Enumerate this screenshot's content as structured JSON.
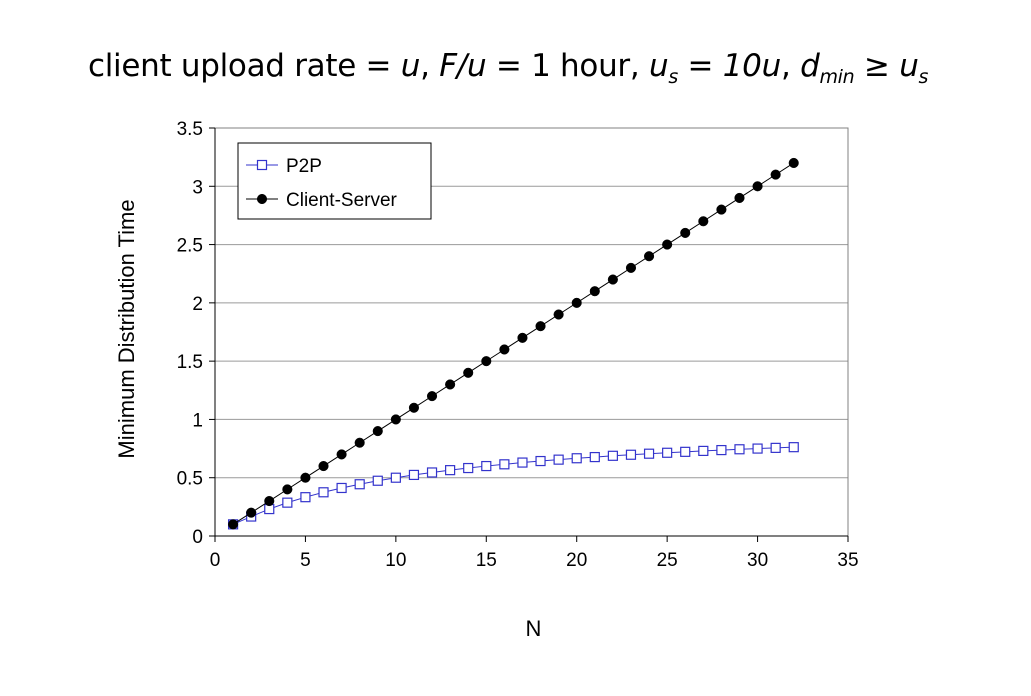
{
  "title": {
    "part1": "client upload rate = ",
    "u1": "u",
    "part2": ",  ",
    "fu": "F/u",
    "part3": " = 1 hour,  ",
    "us_base": "u",
    "us_sub": "s",
    "part4": " = ",
    "tenu": "10u",
    "part5": ",  ",
    "d_base": "d",
    "d_sub": "min",
    "part6": " ≥ ",
    "us2_base": "u",
    "us2_sub": "s"
  },
  "chart_data": {
    "type": "line",
    "xlabel": "N",
    "ylabel": "Minimum Distribution Time",
    "xlim": [
      0,
      35
    ],
    "ylim": [
      0,
      3.5
    ],
    "xticks": [
      "0",
      "5",
      "10",
      "15",
      "20",
      "25",
      "30",
      "35"
    ],
    "yticks": [
      "0",
      "0.5",
      "1",
      "1.5",
      "2",
      "2.5",
      "3",
      "3.5"
    ],
    "grid": true,
    "legend_position": "top-left",
    "x": [
      1,
      2,
      3,
      4,
      5,
      6,
      7,
      8,
      9,
      10,
      11,
      12,
      13,
      14,
      15,
      16,
      17,
      18,
      19,
      20,
      21,
      22,
      23,
      24,
      25,
      26,
      27,
      28,
      29,
      30,
      31,
      32
    ],
    "series": [
      {
        "name": "P2P",
        "marker": "open-square",
        "color": "#3333cc",
        "values": [
          0.1,
          0.167,
          0.231,
          0.286,
          0.333,
          0.375,
          0.412,
          0.444,
          0.474,
          0.5,
          0.524,
          0.545,
          0.565,
          0.583,
          0.6,
          0.615,
          0.63,
          0.643,
          0.655,
          0.667,
          0.677,
          0.688,
          0.697,
          0.706,
          0.714,
          0.722,
          0.73,
          0.737,
          0.744,
          0.75,
          0.756,
          0.762
        ]
      },
      {
        "name": "Client-Server",
        "marker": "filled-circle",
        "color": "#000000",
        "values": [
          0.1,
          0.2,
          0.3,
          0.4,
          0.5,
          0.6,
          0.7,
          0.8,
          0.9,
          1.0,
          1.1,
          1.2,
          1.3,
          1.4,
          1.5,
          1.6,
          1.7,
          1.8,
          1.9,
          2.0,
          2.1,
          2.2,
          2.3,
          2.4,
          2.5,
          2.6,
          2.7,
          2.8,
          2.9,
          3.0,
          3.1,
          3.2
        ]
      }
    ]
  }
}
